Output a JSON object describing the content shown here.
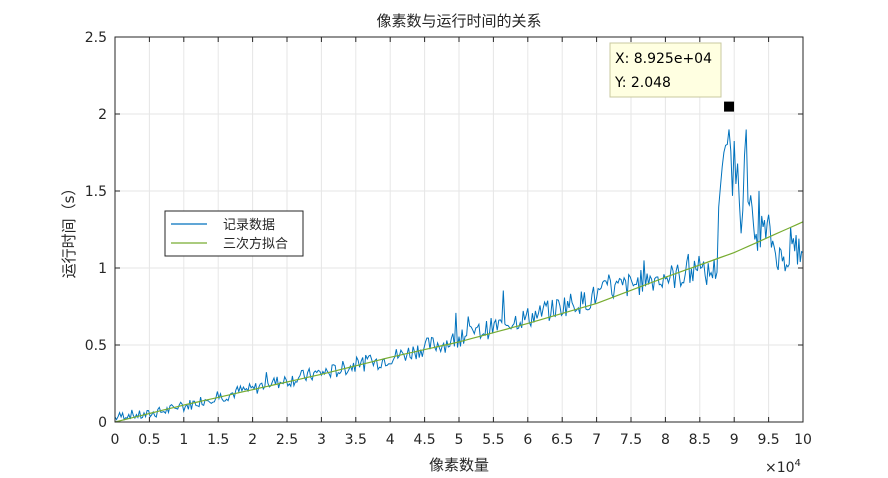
{
  "chart_data": {
    "type": "line",
    "title": "像素数与运行时间的关系",
    "xlabel": "像素数量",
    "ylabel": "运行时间（s）",
    "xlim": [
      0,
      100000
    ],
    "ylim": [
      0,
      2.5
    ],
    "x_exponent_label": "×10",
    "x_exponent_power": "4",
    "x_ticks": [
      0,
      5000,
      10000,
      15000,
      20000,
      25000,
      30000,
      35000,
      40000,
      45000,
      50000,
      55000,
      60000,
      65000,
      70000,
      75000,
      80000,
      85000,
      90000,
      95000,
      100000
    ],
    "x_tick_labels": [
      "0",
      "0.5",
      "1",
      "1.5",
      "2",
      "2.5",
      "3",
      "3.5",
      "4",
      "4.5",
      "5",
      "5.5",
      "6",
      "6.5",
      "7",
      "7.5",
      "8",
      "8.5",
      "9",
      "9.5",
      "10"
    ],
    "y_ticks": [
      0,
      0.5,
      1,
      1.5,
      2,
      2.5
    ],
    "y_tick_labels": [
      "0",
      "0.5",
      "1",
      "1.5",
      "2",
      "2.5"
    ],
    "grid": true,
    "legend_position": "middle-left",
    "series": [
      {
        "name": "记录数据",
        "color": "#0072bd",
        "kind": "recorded",
        "x": [
          0,
          2000,
          4000,
          6000,
          8000,
          10000,
          12000,
          14000,
          16000,
          18000,
          20000,
          22000,
          24000,
          26000,
          28000,
          30000,
          32000,
          34000,
          36000,
          38000,
          40000,
          42000,
          44000,
          46000,
          48000,
          50000,
          52000,
          54000,
          56000,
          58000,
          60000,
          62000,
          64000,
          66000,
          68000,
          70000,
          72000,
          74000,
          76000,
          78000,
          80000,
          82000,
          84000,
          86000,
          87500,
          88000,
          88500,
          89000,
          89250,
          89500,
          90000,
          90500,
          91000,
          91500,
          92000,
          93000,
          94000,
          95000,
          96000,
          97000,
          98000,
          99000,
          100000
        ],
        "y": [
          0.03,
          0.05,
          0.04,
          0.06,
          0.08,
          0.1,
          0.13,
          0.16,
          0.17,
          0.2,
          0.21,
          0.25,
          0.26,
          0.28,
          0.3,
          0.32,
          0.33,
          0.36,
          0.38,
          0.39,
          0.42,
          0.44,
          0.47,
          0.5,
          0.51,
          0.55,
          0.57,
          0.6,
          0.63,
          0.66,
          0.68,
          0.7,
          0.74,
          0.77,
          0.78,
          0.82,
          0.86,
          0.88,
          0.9,
          0.93,
          0.94,
          0.95,
          0.97,
          0.96,
          1.0,
          1.45,
          1.65,
          1.8,
          2.048,
          1.65,
          1.5,
          1.75,
          1.3,
          1.68,
          1.5,
          1.2,
          1.22,
          1.25,
          1.1,
          1.05,
          1.08,
          1.12,
          1.1
        ]
      },
      {
        "name": "三次方拟合",
        "color": "#77ac30",
        "kind": "fit",
        "x": [
          0,
          10000,
          20000,
          30000,
          40000,
          50000,
          60000,
          70000,
          80000,
          90000,
          100000
        ],
        "y": [
          0.0,
          0.11,
          0.21,
          0.31,
          0.42,
          0.52,
          0.64,
          0.77,
          0.94,
          1.1,
          1.3
        ]
      }
    ],
    "datatip": {
      "x": 89250,
      "y": 2.048,
      "x_label": "X: 8.925e+04",
      "y_label": "Y: 2.048"
    }
  }
}
